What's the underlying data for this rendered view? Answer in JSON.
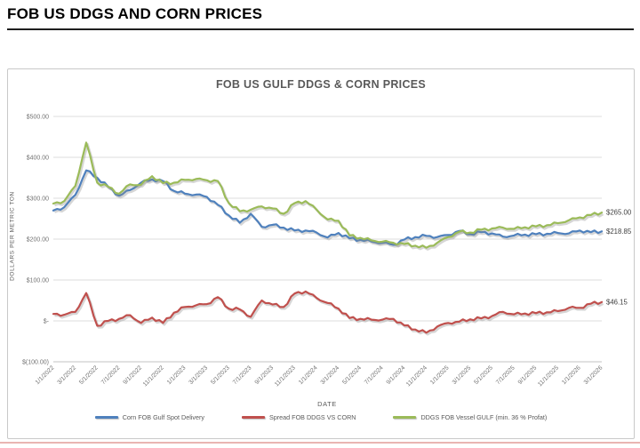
{
  "page": {
    "title": "FOB US DDGS AND CORN PRICES"
  },
  "chart": {
    "title": "FOB US GULF DDGS & CORN PRICES",
    "y_axis_title": "DOLLARS PER METRIC TON",
    "x_axis_title": "DATE",
    "y_tick_labels": [
      "$500.00",
      "$400.00",
      "$300.00",
      "$200.00",
      "$100.00",
      "$-",
      "$(100.00)"
    ],
    "y_tick_values": [
      500,
      400,
      300,
      200,
      100,
      0,
      -100
    ]
  },
  "chart_data": {
    "type": "line",
    "title": "FOB US GULF DDGS & CORN PRICES",
    "xlabel": "DATE",
    "ylabel": "DOLLARS PER METRIC TON",
    "ylim": [
      -100,
      500
    ],
    "grid": true,
    "legend_position": "bottom",
    "x_tick_labels": [
      "1/1/2022",
      "3/1/2022",
      "5/1/2022",
      "7/1/2022",
      "9/1/2022",
      "11/1/2022",
      "1/1/2023",
      "3/1/2023",
      "5/1/2023",
      "7/1/2023",
      "9/1/2023",
      "11/1/2023",
      "1/1/2024",
      "3/1/2024",
      "5/1/2024",
      "7/1/2024",
      "9/1/2024",
      "11/1/2024",
      "1/1/2025",
      "3/1/2025",
      "5/1/2025",
      "7/1/2025",
      "9/1/2025",
      "11/1/2025",
      "1/1/2026",
      "3/1/2026"
    ],
    "x": [
      "1/1/2022",
      "2/1/2022",
      "3/1/2022",
      "4/1/2022",
      "5/1/2022",
      "6/1/2022",
      "7/1/2022",
      "8/1/2022",
      "9/1/2022",
      "10/1/2022",
      "11/1/2022",
      "12/1/2022",
      "1/1/2023",
      "2/1/2023",
      "3/1/2023",
      "4/1/2023",
      "5/1/2023",
      "6/1/2023",
      "7/1/2023",
      "8/1/2023",
      "9/1/2023",
      "10/1/2023",
      "11/1/2023",
      "12/1/2023",
      "1/1/2024",
      "2/1/2024",
      "3/1/2024",
      "4/1/2024",
      "5/1/2024",
      "6/1/2024",
      "7/1/2024",
      "8/1/2024",
      "9/1/2024",
      "10/1/2024",
      "11/1/2024",
      "12/1/2024",
      "1/1/2025",
      "2/1/2025",
      "3/1/2025",
      "4/1/2025",
      "5/1/2025",
      "6/1/2025",
      "7/1/2025",
      "8/1/2025",
      "9/1/2025",
      "10/1/2025",
      "11/1/2025",
      "12/1/2025",
      "1/1/2026",
      "2/1/2026",
      "3/1/2026"
    ],
    "series": [
      {
        "name": "Corn FOB Gulf Spot Delivery",
        "color": "#4f81bd",
        "end_label": "$218.85",
        "values": [
          270,
          278,
          308,
          368,
          350,
          328,
          306,
          320,
          338,
          346,
          342,
          318,
          311,
          309,
          303,
          284,
          258,
          240,
          262,
          230,
          235,
          228,
          221,
          221,
          216,
          204,
          215,
          202,
          198,
          194,
          191,
          186,
          199,
          205,
          208,
          205,
          210,
          220,
          212,
          217,
          214,
          206,
          209,
          211,
          212,
          213,
          215,
          214,
          221,
          217,
          218.85
        ]
      },
      {
        "name": "Spread FOB DDGS VS CORN",
        "color": "#c0504d",
        "end_label": "$46.15",
        "values": [
          17,
          15,
          22,
          68,
          -12,
          0,
          5,
          14,
          -5,
          8,
          -5,
          20,
          34,
          38,
          41,
          58,
          30,
          28,
          10,
          50,
          40,
          34,
          67,
          72,
          56,
          44,
          30,
          7,
          5,
          3,
          3,
          5,
          -11,
          -21,
          -29,
          -14,
          -5,
          -2,
          4,
          6,
          12,
          22,
          16,
          18,
          19,
          21,
          24,
          32,
          32,
          42,
          46.15
        ]
      },
      {
        "name": "DDGS FOB Vessel GULF  (min. 36 % Profat)",
        "color": "#9bbb59",
        "end_label": "$265.00",
        "values": [
          287,
          293,
          330,
          436,
          338,
          328,
          311,
          334,
          333,
          354,
          337,
          338,
          345,
          347,
          344,
          342,
          288,
          268,
          272,
          280,
          275,
          262,
          288,
          293,
          272,
          248,
          245,
          209,
          203,
          197,
          194,
          191,
          188,
          184,
          179,
          191,
          205,
          218,
          216,
          223,
          226,
          228,
          225,
          229,
          231,
          234,
          239,
          246,
          253,
          259,
          265
        ]
      }
    ]
  }
}
